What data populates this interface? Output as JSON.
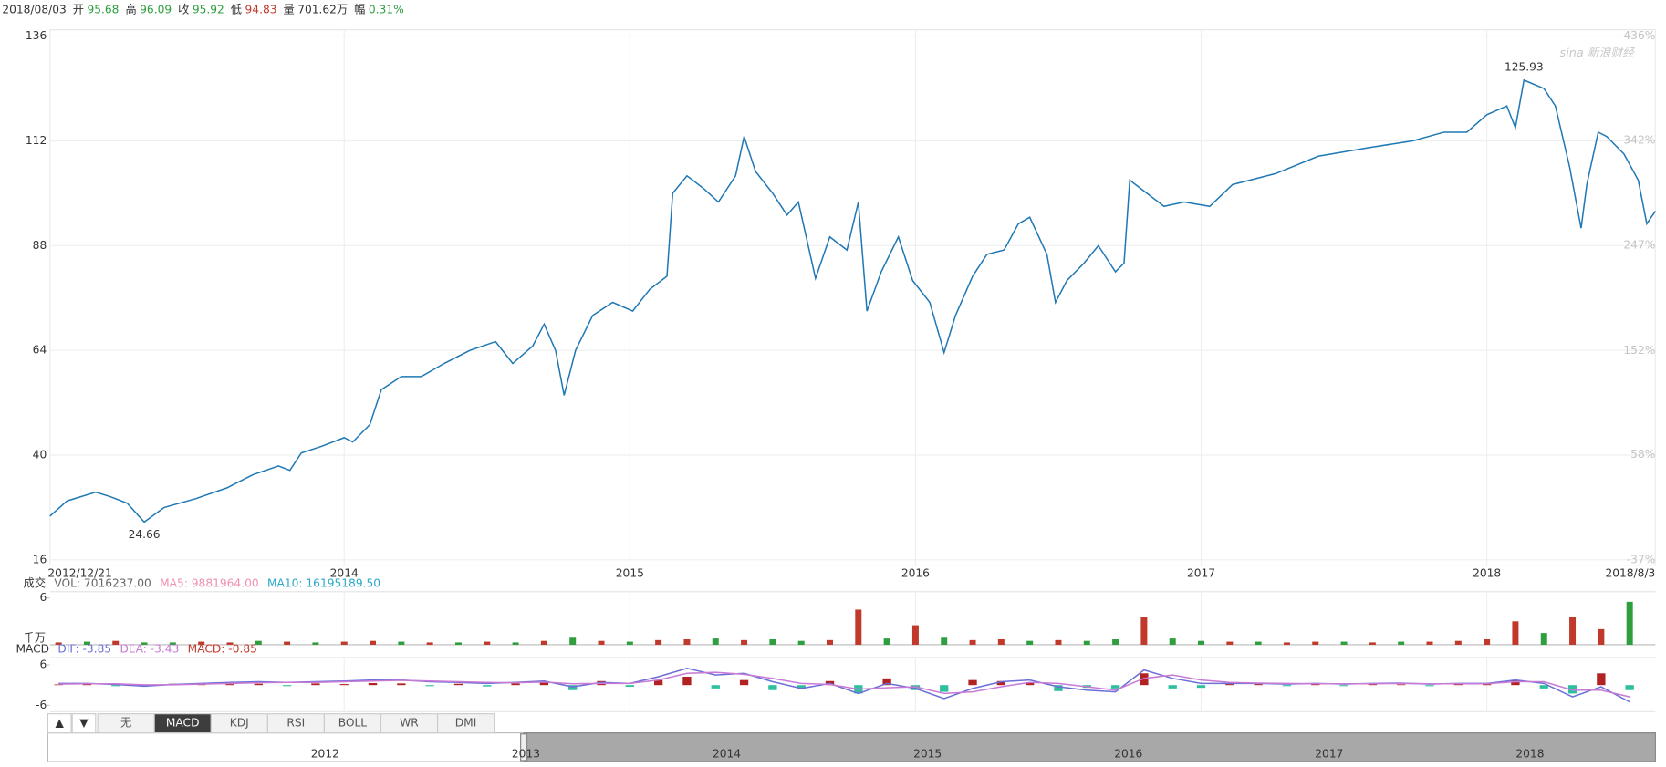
{
  "header": {
    "date": "2018/08/03",
    "fields": [
      {
        "label": "开",
        "value": "95.68",
        "color": "#2e9e3e"
      },
      {
        "label": "高",
        "value": "96.09",
        "color": "#2e9e3e"
      },
      {
        "label": "收",
        "value": "95.92",
        "color": "#2e9e3e"
      },
      {
        "label": "低",
        "value": "94.83",
        "color": "#c0392b"
      },
      {
        "label": "量",
        "value": "701.62万",
        "color": "#333333"
      },
      {
        "label": "幅",
        "value": "0.31%",
        "color": "#2e9e3e"
      }
    ]
  },
  "watermark": "sina 新浪财经",
  "chart_data": [
    {
      "type": "line",
      "color": "#1f78b4",
      "grid": true,
      "x": [
        2012.97,
        2013.03,
        2013.13,
        2013.18,
        2013.24,
        2013.3,
        2013.37,
        2013.48,
        2013.59,
        2013.68,
        2013.77,
        2013.81,
        2013.85,
        2013.92,
        2014.0,
        2014.03,
        2014.09,
        2014.13,
        2014.2,
        2014.27,
        2014.35,
        2014.44,
        2014.53,
        2014.59,
        2014.66,
        2014.7,
        2014.74,
        2014.77,
        2014.81,
        2014.87,
        2014.94,
        2015.01,
        2015.07,
        2015.13,
        2015.15,
        2015.2,
        2015.26,
        2015.31,
        2015.37,
        2015.4,
        2015.44,
        2015.5,
        2015.55,
        2015.59,
        2015.65,
        2015.7,
        2015.76,
        2015.8,
        2015.83,
        2015.88,
        2015.94,
        2015.99,
        2016.05,
        2016.1,
        2016.14,
        2016.2,
        2016.25,
        2016.31,
        2016.36,
        2016.4,
        2016.46,
        2016.49,
        2016.53,
        2016.59,
        2016.64,
        2016.7,
        2016.73,
        2016.75,
        2016.79,
        2016.87,
        2016.94,
        2017.03,
        2017.11,
        2017.26,
        2017.41,
        2017.59,
        2017.74,
        2017.85,
        2017.93,
        2018.0,
        2018.07,
        2018.1,
        2018.13,
        2018.2,
        2018.24,
        2018.29,
        2018.33,
        2018.35,
        2018.39,
        2018.42,
        2018.48,
        2018.53,
        2018.56,
        2018.59
      ],
      "values": [
        26,
        29.5,
        31.5,
        30.5,
        29,
        24.66,
        28,
        30,
        32.5,
        35.5,
        37.5,
        36.5,
        40.5,
        42,
        44,
        43,
        47,
        55,
        58,
        58,
        61,
        64,
        66,
        61,
        65,
        70,
        64,
        53.7,
        64,
        72,
        75,
        73,
        78,
        81,
        100,
        104,
        101,
        98,
        104,
        113,
        105,
        100,
        95,
        98,
        80.5,
        90,
        87,
        98,
        73,
        82,
        90,
        80,
        75,
        63.5,
        72,
        81,
        86,
        87,
        93,
        94.5,
        86,
        75,
        80,
        84,
        88,
        82,
        84,
        103,
        101,
        97,
        98,
        97,
        102,
        104.5,
        108.5,
        110.5,
        112,
        114,
        114,
        118,
        120,
        115,
        125.93,
        124,
        120,
        106,
        92,
        102,
        114,
        113,
        109,
        103,
        93,
        95.92
      ],
      "xlim": [
        2012.97,
        2018.59
      ],
      "xticks": [
        {
          "value": 2012.97,
          "label": "2012/12/21"
        },
        2014,
        2015,
        2016,
        2017,
        2018,
        {
          "value": 2018.59,
          "label": "2018/8/3"
        }
      ],
      "ylim": [
        16,
        136
      ],
      "yticks": [
        16,
        40,
        64,
        88,
        112,
        136
      ],
      "y2lim": [
        -37,
        436
      ],
      "y2ticks": [
        {
          "value": -37,
          "label": "-37%"
        },
        {
          "value": 58,
          "label": "58%"
        },
        {
          "value": 152,
          "label": "152%"
        },
        {
          "value": 247,
          "label": "247%"
        },
        {
          "value": 342,
          "label": "342%"
        },
        {
          "value": 436,
          "label": "436%"
        }
      ],
      "annotations": [
        {
          "x": 2013.3,
          "y": 24.66
        },
        {
          "x": 2018.13,
          "y": 125.93
        }
      ]
    },
    {
      "type": "bar",
      "title": "成交",
      "unit": "千万",
      "legend": [
        {
          "label": "VOL: 7016237.00",
          "color": "#666666"
        },
        {
          "label": "MA5: 9881964.00",
          "color": "#f08fb0"
        },
        {
          "label": "MA10: 16195189.50",
          "color": "#2aa8c8"
        }
      ],
      "x": [
        2013.0,
        2013.1,
        2013.2,
        2013.3,
        2013.4,
        2013.5,
        2013.6,
        2013.7,
        2013.8,
        2013.9,
        2014.0,
        2014.1,
        2014.2,
        2014.3,
        2014.4,
        2014.5,
        2014.6,
        2014.7,
        2014.8,
        2014.9,
        2015.0,
        2015.1,
        2015.2,
        2015.3,
        2015.4,
        2015.5,
        2015.6,
        2015.7,
        2015.8,
        2015.9,
        2016.0,
        2016.1,
        2016.2,
        2016.3,
        2016.4,
        2016.5,
        2016.6,
        2016.7,
        2016.8,
        2016.9,
        2017.0,
        2017.1,
        2017.2,
        2017.3,
        2017.4,
        2017.5,
        2017.6,
        2017.7,
        2017.8,
        2017.9,
        2018.0,
        2018.1,
        2018.2,
        2018.3,
        2018.4,
        2018.5
      ],
      "values": [
        0.3,
        0.4,
        0.5,
        0.3,
        0.3,
        0.4,
        0.3,
        0.5,
        0.4,
        0.3,
        0.4,
        0.5,
        0.4,
        0.3,
        0.3,
        0.4,
        0.3,
        0.5,
        0.9,
        0.5,
        0.4,
        0.6,
        0.7,
        0.8,
        0.6,
        0.7,
        0.5,
        0.6,
        4.5,
        0.8,
        2.5,
        0.9,
        0.6,
        0.7,
        0.5,
        0.6,
        0.5,
        0.7,
        3.5,
        0.8,
        0.5,
        0.4,
        0.4,
        0.3,
        0.4,
        0.4,
        0.3,
        0.4,
        0.4,
        0.5,
        0.7,
        3.0,
        1.5,
        3.5,
        2.0,
        5.5
      ],
      "colors": [
        "#c0392b",
        "#2e9e3e",
        "#c0392b",
        "#2e9e3e",
        "#2e9e3e",
        "#c0392b",
        "#c0392b",
        "#2e9e3e",
        "#c0392b",
        "#2e9e3e",
        "#c0392b",
        "#c0392b",
        "#2e9e3e",
        "#c0392b",
        "#2e9e3e",
        "#c0392b",
        "#2e9e3e",
        "#c0392b",
        "#2e9e3e",
        "#c0392b",
        "#2e9e3e",
        "#c0392b",
        "#c0392b",
        "#2e9e3e",
        "#c0392b",
        "#2e9e3e",
        "#2e9e3e",
        "#c0392b",
        "#c0392b",
        "#2e9e3e",
        "#c0392b",
        "#2e9e3e",
        "#c0392b",
        "#c0392b",
        "#2e9e3e",
        "#c0392b",
        "#2e9e3e",
        "#2e9e3e",
        "#c0392b",
        "#2e9e3e",
        "#2e9e3e",
        "#c0392b",
        "#2e9e3e",
        "#c0392b",
        "#c0392b",
        "#2e9e3e",
        "#c0392b",
        "#2e9e3e",
        "#c0392b",
        "#c0392b",
        "#c0392b",
        "#c0392b",
        "#2e9e3e",
        "#c0392b",
        "#c0392b",
        "#2e9e3e"
      ],
      "xlim": [
        2012.97,
        2018.59
      ],
      "xticks": [
        2014,
        2015,
        2016,
        2017,
        2018
      ],
      "ylim": [
        0,
        6.8
      ],
      "yticks": [
        6
      ]
    },
    {
      "type": "macd",
      "title": "MACD",
      "legend": [
        {
          "label": "DIF: -3.85",
          "color": "#6b6fd6"
        },
        {
          "label": "DEA: -3.43",
          "color": "#c77ad6"
        },
        {
          "label": "MACD: -0.85",
          "color": "#c0392b"
        }
      ],
      "up_color": "#b22222",
      "down_color": "#2fbf9f",
      "x": [
        2013.0,
        2013.1,
        2013.2,
        2013.3,
        2013.4,
        2013.5,
        2013.6,
        2013.7,
        2013.8,
        2013.9,
        2014.0,
        2014.1,
        2014.2,
        2014.3,
        2014.4,
        2014.5,
        2014.6,
        2014.7,
        2014.8,
        2014.9,
        2015.0,
        2015.1,
        2015.2,
        2015.3,
        2015.4,
        2015.5,
        2015.6,
        2015.7,
        2015.8,
        2015.9,
        2016.0,
        2016.1,
        2016.2,
        2016.3,
        2016.4,
        2016.5,
        2016.6,
        2016.7,
        2016.8,
        2016.9,
        2017.0,
        2017.1,
        2017.2,
        2017.3,
        2017.4,
        2017.5,
        2017.6,
        2017.7,
        2017.8,
        2017.9,
        2018.0,
        2018.1,
        2018.2,
        2018.3,
        2018.4,
        2018.5
      ],
      "histogram": [
        0.2,
        0.3,
        -0.3,
        -0.5,
        0.4,
        0.3,
        0.3,
        0.4,
        -0.3,
        0.5,
        0.3,
        0.6,
        0.5,
        -0.3,
        0.4,
        -0.4,
        0.5,
        1.0,
        -1.5,
        1.2,
        -0.5,
        1.5,
        2.5,
        -1.0,
        1.5,
        -1.5,
        -1.2,
        1.2,
        -2.5,
        2.0,
        -1.5,
        -2.0,
        1.5,
        1.2,
        0.8,
        -1.8,
        -0.8,
        -1.0,
        3.5,
        -1.0,
        -0.8,
        0.3,
        0.3,
        -0.3,
        0.3,
        -0.3,
        0.3,
        0.2,
        -0.3,
        0.3,
        0.3,
        1.5,
        -1.0,
        -2.5,
        3.5,
        -1.5
      ],
      "lines": [
        {
          "color": "#6b6fd6",
          "values": [
            0.5,
            0.5,
            0.2,
            -0.3,
            0.2,
            0.5,
            0.8,
            1.0,
            0.8,
            1.0,
            1.2,
            1.5,
            1.5,
            1.0,
            0.8,
            0.5,
            0.8,
            1.2,
            -0.5,
            0.8,
            0.5,
            2.5,
            5.0,
            3.0,
            3.5,
            1.0,
            -1.0,
            0.5,
            -2.5,
            0.5,
            -1.0,
            -4.0,
            -1.0,
            1.0,
            1.5,
            -0.5,
            -1.5,
            -2.0,
            4.5,
            2.0,
            0.5,
            0.5,
            0.5,
            0.3,
            0.5,
            0.3,
            0.5,
            0.6,
            0.3,
            0.5,
            0.5,
            1.5,
            0.5,
            -3.5,
            -0.5,
            -5.0
          ]
        },
        {
          "color": "#c77ad6",
          "values": [
            0.3,
            0.4,
            0.4,
            0.1,
            0.1,
            0.3,
            0.5,
            0.7,
            0.8,
            0.8,
            1.0,
            1.2,
            1.4,
            1.2,
            1.0,
            0.8,
            0.7,
            0.9,
            0.4,
            0.5,
            0.5,
            1.5,
            3.5,
            3.8,
            3.2,
            2.0,
            0.5,
            0.2,
            -1.2,
            -0.8,
            -0.5,
            -2.5,
            -2.0,
            -0.5,
            0.8,
            0.5,
            -0.5,
            -1.5,
            2.0,
            3.0,
            1.5,
            0.8,
            0.6,
            0.5,
            0.4,
            0.4,
            0.4,
            0.5,
            0.4,
            0.4,
            0.4,
            1.0,
            1.0,
            -1.5,
            -1.5,
            -3.5
          ]
        }
      ],
      "xlim": [
        2012.97,
        2018.59
      ],
      "xticks": [
        2014,
        2015,
        2016,
        2017,
        2018
      ],
      "ylim": [
        -7.9,
        8.2
      ],
      "yticks": [
        6,
        -6
      ]
    }
  ],
  "tabs": {
    "arrows": [
      "▲",
      "▼"
    ],
    "items": [
      "无",
      "MACD",
      "KDJ",
      "RSI",
      "BOLL",
      "WR",
      "DMI"
    ],
    "active": 1
  },
  "navigator": {
    "labels": [
      "2012",
      "2013",
      "2014",
      "2015",
      "2016",
      "2017",
      "2018"
    ]
  }
}
